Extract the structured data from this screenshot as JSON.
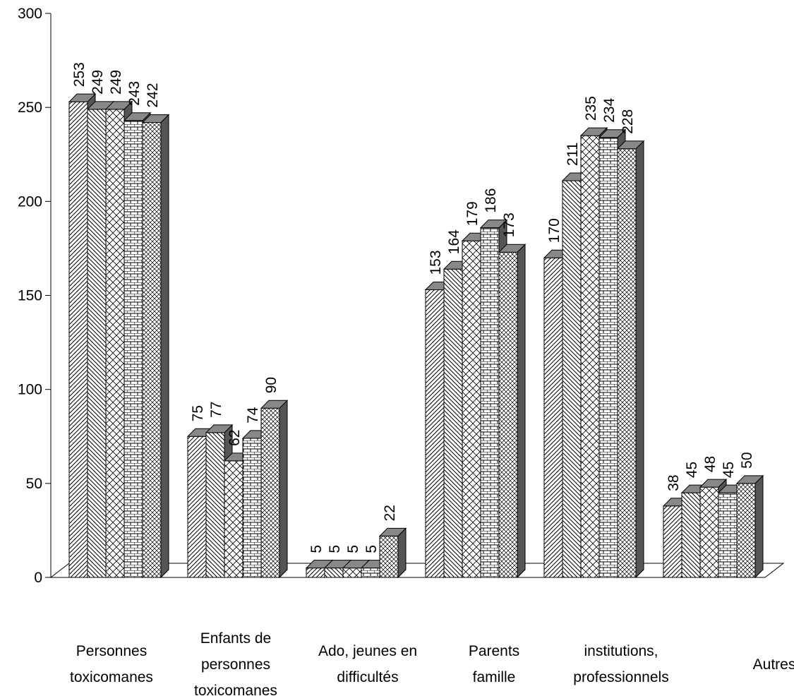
{
  "chart_data": {
    "type": "bar",
    "title": "",
    "xlabel": "",
    "ylabel": "",
    "ylim": [
      0,
      300
    ],
    "yticks": [
      0,
      50,
      100,
      150,
      200,
      250,
      300
    ],
    "grid": false,
    "legend": "none",
    "categories": [
      [
        "Personnes",
        "toxicomanes"
      ],
      [
        "Enfants de",
        "personnes",
        "toxicomanes"
      ],
      [
        "Ado, jeunes en",
        "difficultés"
      ],
      [
        "Parents",
        "famille"
      ],
      [
        "institutions,",
        "professionnels"
      ],
      [
        "Autres"
      ]
    ],
    "series": [
      {
        "pattern": "diag-right",
        "values": [
          253,
          75,
          5,
          153,
          170,
          38
        ]
      },
      {
        "pattern": "diag-left",
        "values": [
          249,
          77,
          5,
          164,
          211,
          45
        ]
      },
      {
        "pattern": "crosshatch",
        "values": [
          249,
          62,
          5,
          179,
          235,
          48
        ]
      },
      {
        "pattern": "brick",
        "values": [
          243,
          74,
          5,
          186,
          234,
          45
        ]
      },
      {
        "pattern": "diag-cross",
        "values": [
          242,
          90,
          22,
          173,
          228,
          50
        ]
      }
    ],
    "colors": {
      "bar_fill": "#ffffff",
      "top_fill": "#888888",
      "side_fill": "#555555",
      "stroke": "#000000"
    }
  }
}
